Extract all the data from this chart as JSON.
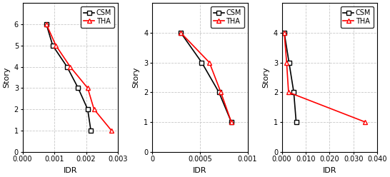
{
  "plots": [
    {
      "csm_idr": [
        0.00075,
        0.00095,
        0.0014,
        0.00175,
        0.00205,
        0.00215
      ],
      "csm_story": [
        6,
        5,
        4,
        3,
        2,
        1
      ],
      "tha_idr": [
        0.00075,
        0.00105,
        0.0015,
        0.00205,
        0.00225,
        0.0028
      ],
      "tha_story": [
        6,
        5,
        4,
        3,
        2,
        1
      ],
      "ylim": [
        0,
        7
      ],
      "yticks": [
        0,
        1,
        2,
        3,
        4,
        5,
        6
      ],
      "xlim": [
        0.0,
        0.003
      ],
      "xticks": [
        0.0,
        0.001,
        0.002,
        0.003
      ],
      "xtick_labels": [
        "0.000",
        "0.001",
        "0.002",
        "0.003"
      ]
    },
    {
      "csm_idr": [
        0.0003,
        0.00052,
        0.0007,
        0.00083
      ],
      "csm_story": [
        4,
        3,
        2,
        1
      ],
      "tha_idr": [
        0.0003,
        0.0006,
        0.00072,
        0.00083
      ],
      "tha_story": [
        4,
        3,
        2,
        1
      ],
      "ylim": [
        0,
        5
      ],
      "yticks": [
        0,
        1,
        2,
        3,
        4
      ],
      "xlim": [
        0.0,
        0.001
      ],
      "xticks": [
        0.0,
        0.0005,
        0.001
      ],
      "xtick_labels": [
        "0",
        "0.0005",
        "0.001"
      ]
    },
    {
      "csm_idr": [
        0.001,
        0.003,
        0.005,
        0.006
      ],
      "csm_story": [
        4,
        3,
        2,
        1
      ],
      "tha_idr": [
        0.001,
        0.002,
        0.0028,
        0.035
      ],
      "tha_story": [
        4,
        3,
        2,
        1
      ],
      "ylim": [
        0,
        5
      ],
      "yticks": [
        0,
        1,
        2,
        3,
        4
      ],
      "xlim": [
        0.0,
        0.04
      ],
      "xticks": [
        0.0,
        0.01,
        0.02,
        0.03,
        0.04
      ],
      "xtick_labels": [
        "0.000",
        "0.010",
        "0.020",
        "0.030",
        "0.040"
      ]
    }
  ],
  "csm_color": "#000000",
  "tha_color": "#ff0000",
  "csm_marker": "s",
  "tha_marker": "^",
  "ylabel": "Story",
  "xlabel": "IDR",
  "legend_labels": [
    "CSM",
    "THA"
  ],
  "grid_color": "#c8c8c8",
  "markersize": 4,
  "linewidth": 1.2,
  "tick_fontsize": 7,
  "label_fontsize": 8,
  "legend_fontsize": 7
}
